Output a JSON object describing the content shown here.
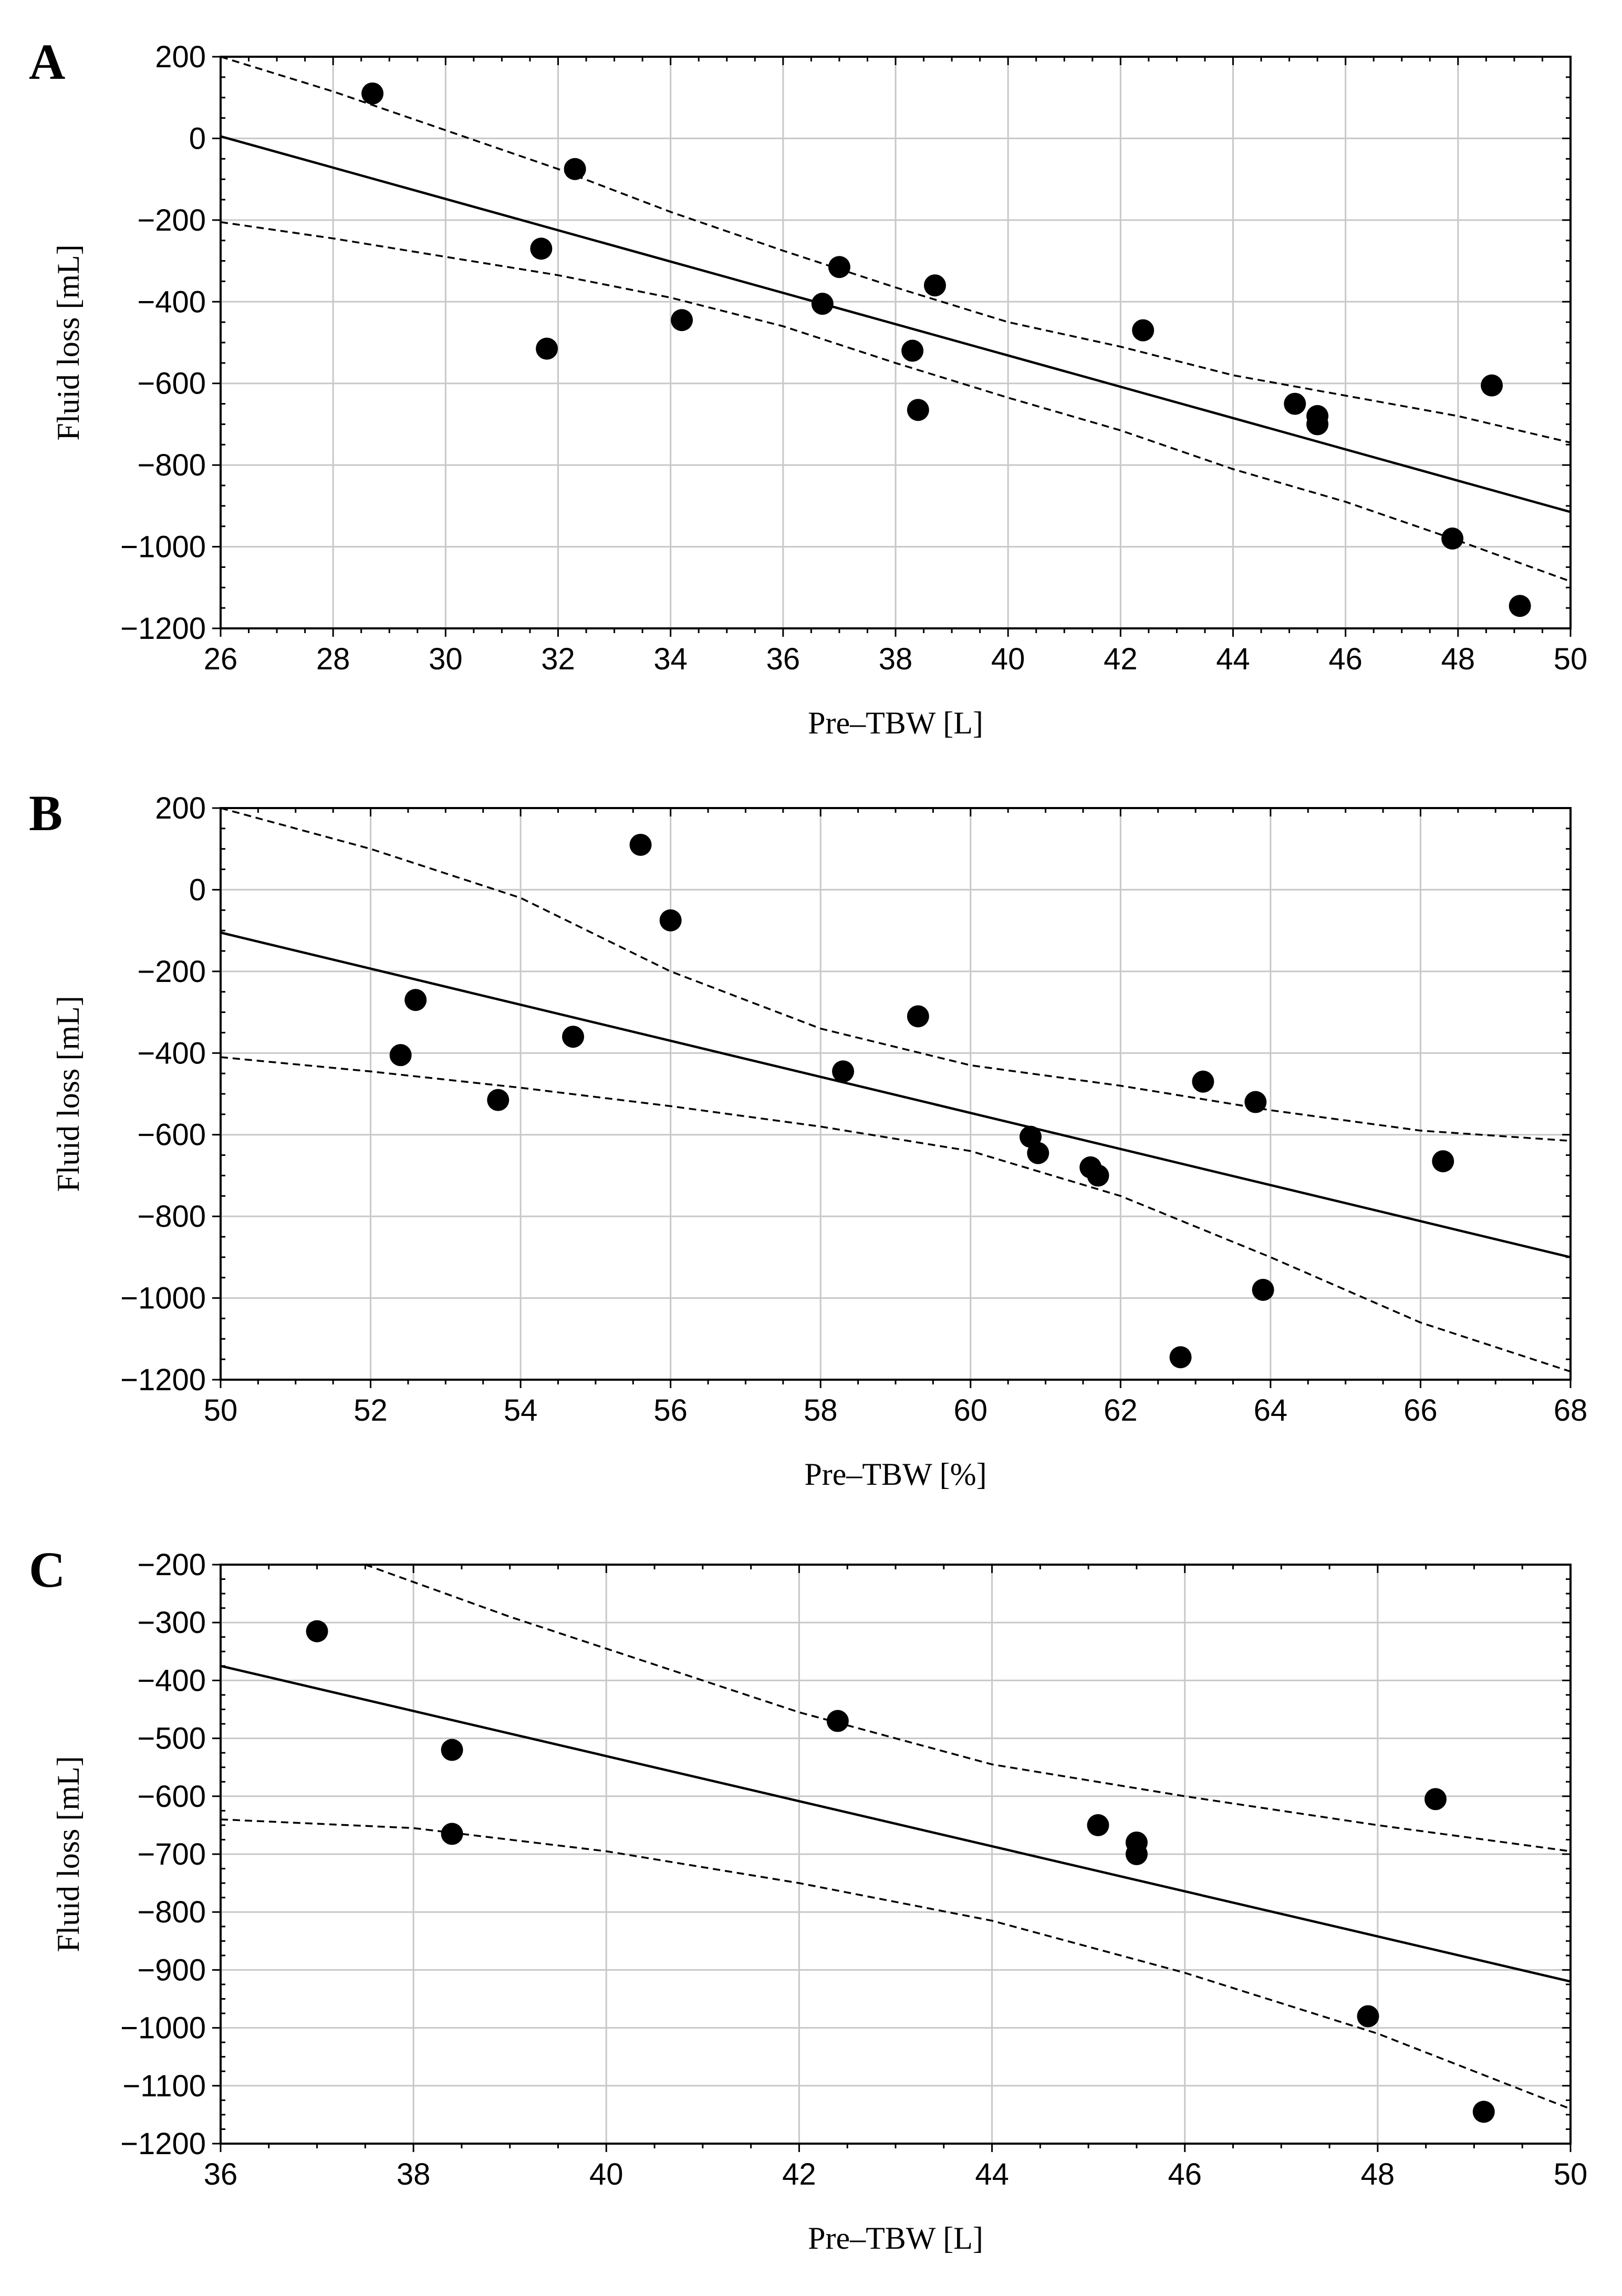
{
  "chart_data": [
    {
      "type": "scatter",
      "panel": "A",
      "xlabel": "Pre–TBW [L]",
      "ylabel": "Fluid loss [mL]",
      "xlim": [
        26,
        50
      ],
      "ylim": [
        -1200,
        200
      ],
      "xticks": [
        26,
        28,
        30,
        32,
        34,
        36,
        38,
        40,
        42,
        44,
        46,
        48,
        50
      ],
      "yticks": [
        200,
        0,
        -200,
        -400,
        -600,
        -800,
        -1000,
        -1200
      ],
      "points": [
        [
          28.7,
          110
        ],
        [
          32.3,
          -75
        ],
        [
          31.7,
          -270
        ],
        [
          31.8,
          -515
        ],
        [
          34.2,
          -445
        ],
        [
          36.7,
          -405
        ],
        [
          37.0,
          -315
        ],
        [
          38.7,
          -360
        ],
        [
          38.3,
          -520
        ],
        [
          38.4,
          -665
        ],
        [
          42.4,
          -470
        ],
        [
          45.1,
          -650
        ],
        [
          45.5,
          -680
        ],
        [
          45.5,
          -700
        ],
        [
          48.6,
          -605
        ],
        [
          47.9,
          -980
        ],
        [
          49.1,
          -1145
        ]
      ],
      "fit_line": [
        [
          26,
          5
        ],
        [
          50,
          -915
        ]
      ],
      "band_upper": [
        [
          26,
          200
        ],
        [
          28,
          115
        ],
        [
          30,
          20
        ],
        [
          32,
          -75
        ],
        [
          34,
          -180
        ],
        [
          36,
          -275
        ],
        [
          38,
          -365
        ],
        [
          40,
          -450
        ],
        [
          42,
          -510
        ],
        [
          44,
          -580
        ],
        [
          46,
          -630
        ],
        [
          48,
          -680
        ],
        [
          50,
          -745
        ]
      ],
      "band_lower": [
        [
          26,
          -205
        ],
        [
          28,
          -245
        ],
        [
          30,
          -290
        ],
        [
          32,
          -335
        ],
        [
          34,
          -390
        ],
        [
          36,
          -460
        ],
        [
          38,
          -550
        ],
        [
          40,
          -635
        ],
        [
          42,
          -715
        ],
        [
          44,
          -810
        ],
        [
          46,
          -890
        ],
        [
          48,
          -985
        ],
        [
          50,
          -1085
        ]
      ]
    },
    {
      "type": "scatter",
      "panel": "B",
      "xlabel": "Pre–TBW [%]",
      "ylabel": "Fluid loss [mL]",
      "xlim": [
        50,
        68
      ],
      "ylim": [
        -1200,
        200
      ],
      "xticks": [
        50,
        52,
        54,
        56,
        58,
        60,
        62,
        64,
        66,
        68
      ],
      "yticks": [
        200,
        0,
        -200,
        -400,
        -600,
        -800,
        -1000,
        -1200
      ],
      "points": [
        [
          55.6,
          110
        ],
        [
          56.0,
          -75
        ],
        [
          52.6,
          -270
        ],
        [
          52.4,
          -405
        ],
        [
          53.7,
          -515
        ],
        [
          54.7,
          -360
        ],
        [
          59.3,
          -310
        ],
        [
          58.3,
          -445
        ],
        [
          60.8,
          -605
        ],
        [
          60.9,
          -645
        ],
        [
          61.6,
          -680
        ],
        [
          61.7,
          -700
        ],
        [
          63.1,
          -470
        ],
        [
          63.8,
          -520
        ],
        [
          66.3,
          -665
        ],
        [
          63.9,
          -980
        ],
        [
          62.8,
          -1145
        ]
      ],
      "fit_line": [
        [
          50,
          -105
        ],
        [
          68,
          -900
        ]
      ],
      "band_upper": [
        [
          50,
          200
        ],
        [
          52,
          100
        ],
        [
          54,
          -20
        ],
        [
          56,
          -200
        ],
        [
          58,
          -340
        ],
        [
          60,
          -430
        ],
        [
          62,
          -480
        ],
        [
          64,
          -540
        ],
        [
          66,
          -590
        ],
        [
          68,
          -615
        ]
      ],
      "band_lower": [
        [
          50,
          -410
        ],
        [
          52,
          -445
        ],
        [
          54,
          -485
        ],
        [
          56,
          -530
        ],
        [
          58,
          -580
        ],
        [
          60,
          -640
        ],
        [
          62,
          -750
        ],
        [
          64,
          -900
        ],
        [
          66,
          -1060
        ],
        [
          68,
          -1180
        ]
      ]
    },
    {
      "type": "scatter",
      "panel": "C",
      "xlabel": "Pre–TBW [L]",
      "ylabel": "Fluid loss [mL]",
      "xlim": [
        36,
        50
      ],
      "ylim": [
        -1200,
        -200
      ],
      "xticks": [
        36,
        38,
        40,
        42,
        44,
        46,
        48,
        50
      ],
      "yticks": [
        -200,
        -300,
        -400,
        -500,
        -600,
        -700,
        -800,
        -900,
        -1000,
        -1100,
        -1200
      ],
      "points": [
        [
          37.0,
          -315
        ],
        [
          38.4,
          -520
        ],
        [
          38.4,
          -665
        ],
        [
          42.4,
          -470
        ],
        [
          45.1,
          -650
        ],
        [
          45.5,
          -680
        ],
        [
          45.5,
          -700
        ],
        [
          48.6,
          -605
        ],
        [
          47.9,
          -980
        ],
        [
          49.1,
          -1145
        ]
      ],
      "fit_line": [
        [
          36,
          -375
        ],
        [
          50,
          -920
        ]
      ],
      "band_upper": [
        [
          37.5,
          -200
        ],
        [
          39,
          -290
        ],
        [
          40,
          -345
        ],
        [
          42,
          -455
        ],
        [
          44,
          -545
        ],
        [
          46,
          -600
        ],
        [
          48,
          -650
        ],
        [
          50,
          -695
        ]
      ],
      "band_lower": [
        [
          36,
          -640
        ],
        [
          38,
          -655
        ],
        [
          40,
          -695
        ],
        [
          42,
          -750
        ],
        [
          44,
          -815
        ],
        [
          46,
          -905
        ],
        [
          48,
          -1010
        ],
        [
          50,
          -1140
        ]
      ]
    }
  ]
}
